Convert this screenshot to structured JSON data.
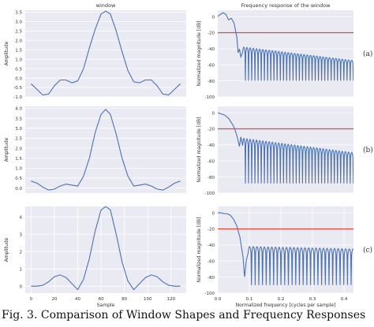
{
  "caption": "Fig. 3. Comparison of Window Shapes and Frequency Responses",
  "colors": {
    "panel_bg": "#eaeaf2",
    "grid": "#ffffff",
    "line": "#4c72b0",
    "threshold": "#e8463b",
    "text": "#333333"
  },
  "chart_data": [
    {
      "type": "line",
      "title": "window",
      "xlabel": "",
      "ylabel": "Amplitude",
      "xlim": [
        -5,
        133
      ],
      "ylim": [
        -1.0,
        3.6
      ],
      "xticks": [],
      "yticks": [
        -1.0,
        -0.5,
        0.0,
        0.5,
        1.0,
        1.5,
        2.0,
        2.5,
        3.0,
        3.5
      ],
      "ytick_labels": [
        "-1.0",
        "-0.5",
        "0.0",
        "0.5",
        "1.0",
        "1.5",
        "2.0",
        "2.5",
        "3.0",
        "3.5"
      ],
      "grid": true,
      "series": [
        {
          "x": [
            0,
            5,
            10,
            15,
            20,
            25,
            30,
            35,
            40,
            45,
            50,
            55,
            60,
            64,
            68,
            73,
            78,
            83,
            88,
            93,
            98,
            103,
            108,
            113,
            118,
            123,
            128
          ],
          "y": [
            -0.3,
            -0.6,
            -0.9,
            -0.85,
            -0.4,
            -0.1,
            -0.1,
            -0.25,
            -0.15,
            0.5,
            1.6,
            2.6,
            3.4,
            3.55,
            3.4,
            2.5,
            1.4,
            0.4,
            -0.2,
            -0.25,
            -0.1,
            -0.1,
            -0.4,
            -0.85,
            -0.9,
            -0.6,
            -0.3
          ]
        }
      ]
    },
    {
      "type": "line",
      "title": "Frequency response of the window",
      "xlabel": "",
      "ylabel": "Normalized magnitude [dB]",
      "xlim": [
        0,
        0.5
      ],
      "ylim": [
        -100,
        8
      ],
      "xticks": [],
      "yticks": [
        0,
        -20,
        -40,
        -60,
        -80,
        -100
      ],
      "ytick_labels": [
        "0",
        "-20",
        "-40",
        "-60",
        "-80",
        "-100"
      ],
      "grid": true,
      "threshold_db": -20,
      "panel_label": "(a)",
      "response": {
        "mainlobe": [
          [
            0,
            0
          ],
          [
            0.01,
            3
          ],
          [
            0.02,
            5
          ],
          [
            0.03,
            3
          ],
          [
            0.04,
            -4
          ],
          [
            0.05,
            -2
          ],
          [
            0.06,
            -8
          ],
          [
            0.07,
            -25
          ],
          [
            0.075,
            -45
          ],
          [
            0.08,
            -40
          ],
          [
            0.085,
            -50
          ]
        ],
        "sidelobe_start": 0.09,
        "sidelobe_step": 0.0117,
        "sidelobe_start_level": -38,
        "sidelobe_end_level": -55,
        "null_depth": -80
      }
    },
    {
      "type": "line",
      "title": "",
      "xlabel": "",
      "ylabel": "Amplitude",
      "xlim": [
        -5,
        133
      ],
      "ylim": [
        -0.25,
        4.1
      ],
      "xticks": [],
      "yticks": [
        0.0,
        0.5,
        1.0,
        1.5,
        2.0,
        2.5,
        3.0,
        3.5,
        4.0
      ],
      "ytick_labels": [
        "0.0",
        "0.5",
        "1.0",
        "1.5",
        "2.0",
        "2.5",
        "3.0",
        "3.5",
        "4.0"
      ],
      "grid": true,
      "series": [
        {
          "x": [
            0,
            5,
            10,
            15,
            20,
            25,
            30,
            35,
            40,
            45,
            50,
            55,
            60,
            64,
            68,
            73,
            78,
            83,
            88,
            93,
            98,
            103,
            108,
            113,
            118,
            123,
            128
          ],
          "y": [
            0.35,
            0.25,
            0.05,
            -0.1,
            -0.05,
            0.1,
            0.2,
            0.15,
            0.1,
            0.6,
            1.5,
            2.8,
            3.7,
            3.95,
            3.7,
            2.7,
            1.5,
            0.6,
            0.1,
            0.15,
            0.2,
            0.1,
            -0.05,
            -0.1,
            0.05,
            0.25,
            0.35
          ]
        }
      ]
    },
    {
      "type": "line",
      "title": "",
      "xlabel": "",
      "ylabel": "Normalized magnitude [dB]",
      "xlim": [
        0,
        0.5
      ],
      "ylim": [
        -100,
        8
      ],
      "xticks": [],
      "yticks": [
        0,
        -20,
        -40,
        -60,
        -80,
        -100
      ],
      "ytick_labels": [
        "0",
        "-20",
        "-40",
        "-60",
        "-80",
        "-100"
      ],
      "grid": true,
      "threshold_db": -20,
      "panel_label": "(b)",
      "response": {
        "mainlobe": [
          [
            0,
            0
          ],
          [
            0.01,
            -1
          ],
          [
            0.02,
            -2
          ],
          [
            0.03,
            -4
          ],
          [
            0.04,
            -7
          ],
          [
            0.05,
            -12
          ],
          [
            0.06,
            -18
          ],
          [
            0.07,
            -28
          ],
          [
            0.08,
            -42
          ],
          [
            0.085,
            -30
          ]
        ],
        "sidelobe_start": 0.09,
        "sidelobe_step": 0.0117,
        "sidelobe_start_level": -32,
        "sidelobe_end_level": -50,
        "null_depth": -88
      }
    },
    {
      "type": "line",
      "title": "",
      "xlabel": "Sample",
      "ylabel": "Amplitude",
      "xlim": [
        -5,
        133
      ],
      "ylim": [
        -0.4,
        4.6
      ],
      "xticks": [
        0,
        20,
        40,
        60,
        80,
        100,
        120
      ],
      "xtick_labels": [
        "0",
        "20",
        "40",
        "60",
        "80",
        "100",
        "120"
      ],
      "yticks": [
        0,
        1,
        2,
        3,
        4
      ],
      "ytick_labels": [
        "0",
        "1",
        "2",
        "3",
        "4"
      ],
      "grid": true,
      "series": [
        {
          "x": [
            0,
            5,
            10,
            15,
            20,
            25,
            30,
            35,
            40,
            45,
            50,
            55,
            60,
            64,
            68,
            73,
            78,
            83,
            88,
            93,
            98,
            103,
            108,
            113,
            118,
            123,
            128
          ],
          "y": [
            0,
            0,
            0.05,
            0.25,
            0.55,
            0.65,
            0.5,
            0.15,
            -0.2,
            0.4,
            1.6,
            3.2,
            4.4,
            4.6,
            4.4,
            3.0,
            1.4,
            0.3,
            -0.2,
            0.15,
            0.5,
            0.65,
            0.55,
            0.25,
            0.05,
            0,
            0
          ]
        }
      ]
    },
    {
      "type": "line",
      "title": "",
      "xlabel": "Normalized frequency [cycles per sample]",
      "ylabel": "Normalized magnitude [dB]",
      "xlim": [
        0,
        0.43
      ],
      "ylim": [
        -100,
        8
      ],
      "xticks": [
        0.0,
        0.1,
        0.2,
        0.3,
        0.4
      ],
      "xtick_labels": [
        "0.0",
        "0.1",
        "0.2",
        "0.3",
        "0.4"
      ],
      "yticks": [
        0,
        -20,
        -40,
        -60,
        -80,
        -100
      ],
      "ytick_labels": [
        "0",
        "-20",
        "-40",
        "-60",
        "-80",
        "-100"
      ],
      "grid": true,
      "threshold_db": -20,
      "panel_label": "(c)",
      "response": {
        "mainlobe": [
          [
            0,
            0
          ],
          [
            0.01,
            0
          ],
          [
            0.02,
            -1
          ],
          [
            0.03,
            -1
          ],
          [
            0.04,
            -3
          ],
          [
            0.05,
            -8
          ],
          [
            0.06,
            -16
          ],
          [
            0.07,
            -30
          ],
          [
            0.08,
            -55
          ],
          [
            0.085,
            -80
          ],
          [
            0.09,
            -60
          ]
        ],
        "sidelobe_start": 0.095,
        "sidelobe_step": 0.0117,
        "sidelobe_start_level": -42,
        "sidelobe_end_level": -45,
        "null_depth": -90
      }
    }
  ]
}
